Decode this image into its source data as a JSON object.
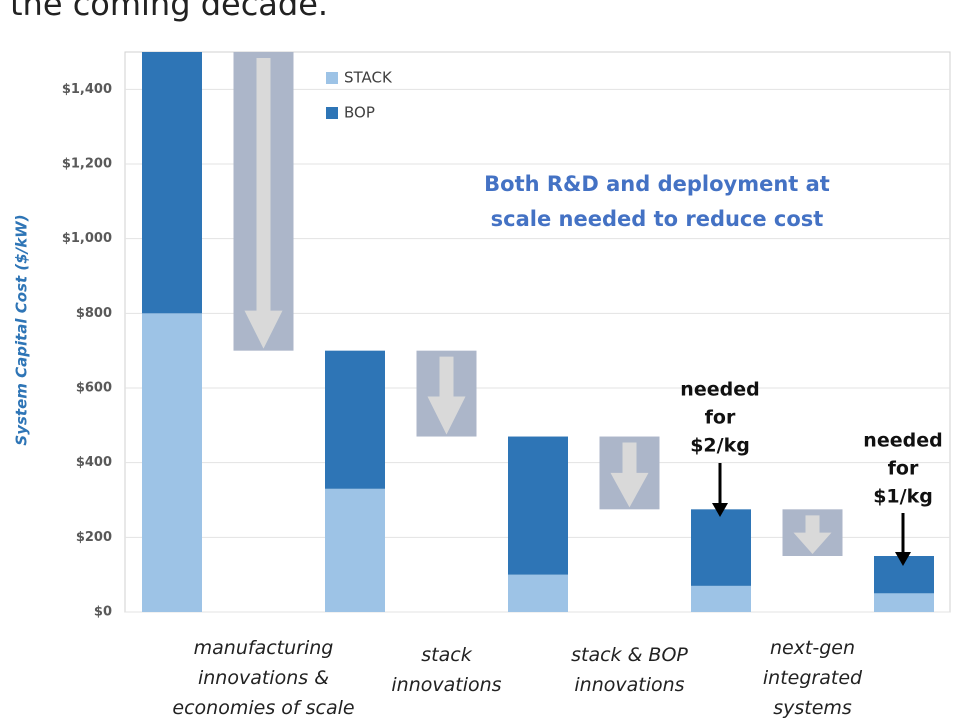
{
  "header_text": "the coming decade.",
  "chart_data": {
    "type": "waterfall",
    "y_label": "System Capital Cost ($/kW)",
    "categories": [
      null,
      "manufacturing\ninnovations &\neconomies of scale",
      null,
      "stack\ninnovations",
      null,
      "stack & BOP\ninnovations",
      null,
      "next-gen\nintegrated\nsystems",
      null
    ],
    "series": [
      {
        "name": "STACK",
        "color": "#9dc3e6",
        "values": [
          800,
          null,
          330,
          null,
          100,
          null,
          70,
          null,
          50
        ]
      },
      {
        "name": "BOP",
        "color": "#2e75b6",
        "values": [
          700,
          null,
          370,
          null,
          370,
          null,
          205,
          null,
          100
        ]
      }
    ],
    "reductions": [
      null,
      800,
      null,
      230,
      null,
      195,
      null,
      125,
      null
    ],
    "reduction_color": "#acb6c9",
    "ylim": [
      0,
      1500
    ],
    "yticks": [
      {
        "value": 0,
        "label": "$0"
      },
      {
        "value": 200,
        "label": "$200"
      },
      {
        "value": 400,
        "label": "$400"
      },
      {
        "value": 600,
        "label": "$600"
      },
      {
        "value": 800,
        "label": "$800"
      },
      {
        "value": 1000,
        "label": "$1,000"
      },
      {
        "value": 1200,
        "label": "$1,200"
      },
      {
        "value": 1400,
        "label": "$1,400"
      }
    ],
    "grid": true,
    "legend": "top-left",
    "annotations": {
      "message": [
        "Both R&D and deployment at",
        "scale needed to reduce cost"
      ],
      "target_2": [
        "needed",
        "for",
        "$2/kg"
      ],
      "target_1": [
        "needed",
        "for",
        "$1/kg"
      ]
    }
  }
}
